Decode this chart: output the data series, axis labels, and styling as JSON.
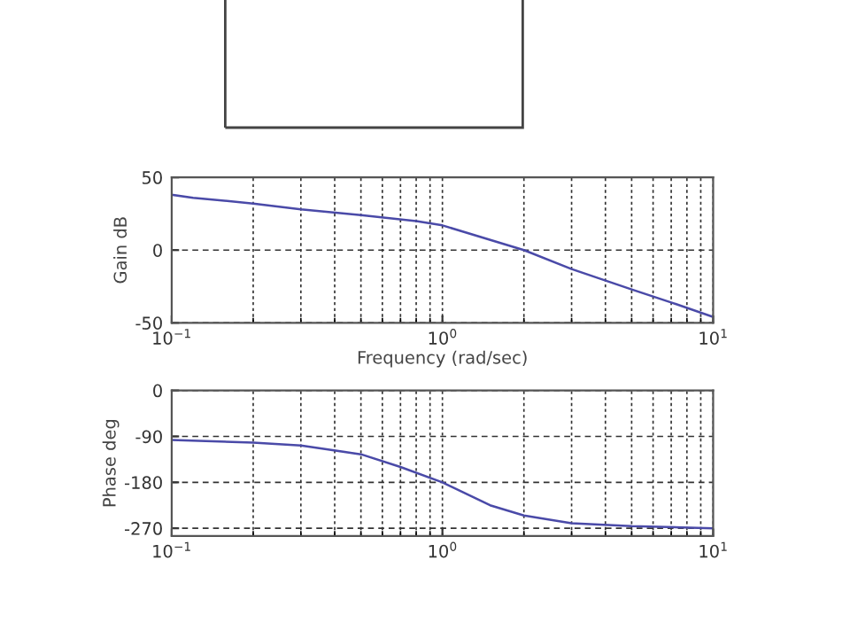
{
  "chart_data": [
    {
      "type": "line",
      "xlabel": "Frequency (rad/sec)",
      "ylabel": "Gain dB",
      "log": "x",
      "grid": true,
      "xlim": [
        0.1,
        10
      ],
      "xticks": [
        {
          "value": 0.1,
          "label": "10$^{−1}$"
        },
        {
          "value": 1,
          "label": "10$^{0}$"
        },
        {
          "value": 10,
          "label": "10$^{1}$"
        }
      ],
      "ylim": [
        -50,
        50
      ],
      "yticks": [
        -50,
        0,
        50
      ],
      "series": [
        {
          "color": "#4a4aa8",
          "x": [
            0.1,
            0.12,
            0.2,
            0.3,
            0.5,
            0.8,
            1,
            2,
            3,
            5,
            7,
            10
          ],
          "values": [
            38,
            36,
            32,
            28,
            24,
            20,
            17,
            0,
            -13,
            -27,
            -36,
            -46
          ]
        }
      ]
    },
    {
      "type": "line",
      "ylabel": "Phase deg",
      "log": "x",
      "grid": true,
      "xlim": [
        0.1,
        10
      ],
      "xticks": [
        {
          "value": 0.1,
          "label": "10$^{−1}$"
        },
        {
          "value": 1,
          "label": "10$^{0}$"
        },
        {
          "value": 10,
          "label": "10$^{1}$"
        }
      ],
      "ylim": [
        -285,
        0
      ],
      "yticks": [
        -270,
        -180,
        -90,
        0
      ],
      "series": [
        {
          "color": "#4a4aa8",
          "x": [
            0.1,
            0.2,
            0.3,
            0.5,
            0.7,
            1,
            1.5,
            2,
            3,
            5,
            10
          ],
          "values": [
            -97,
            -102,
            -108,
            -125,
            -150,
            -180,
            -225,
            -245,
            -260,
            -266,
            -270
          ]
        }
      ]
    }
  ]
}
